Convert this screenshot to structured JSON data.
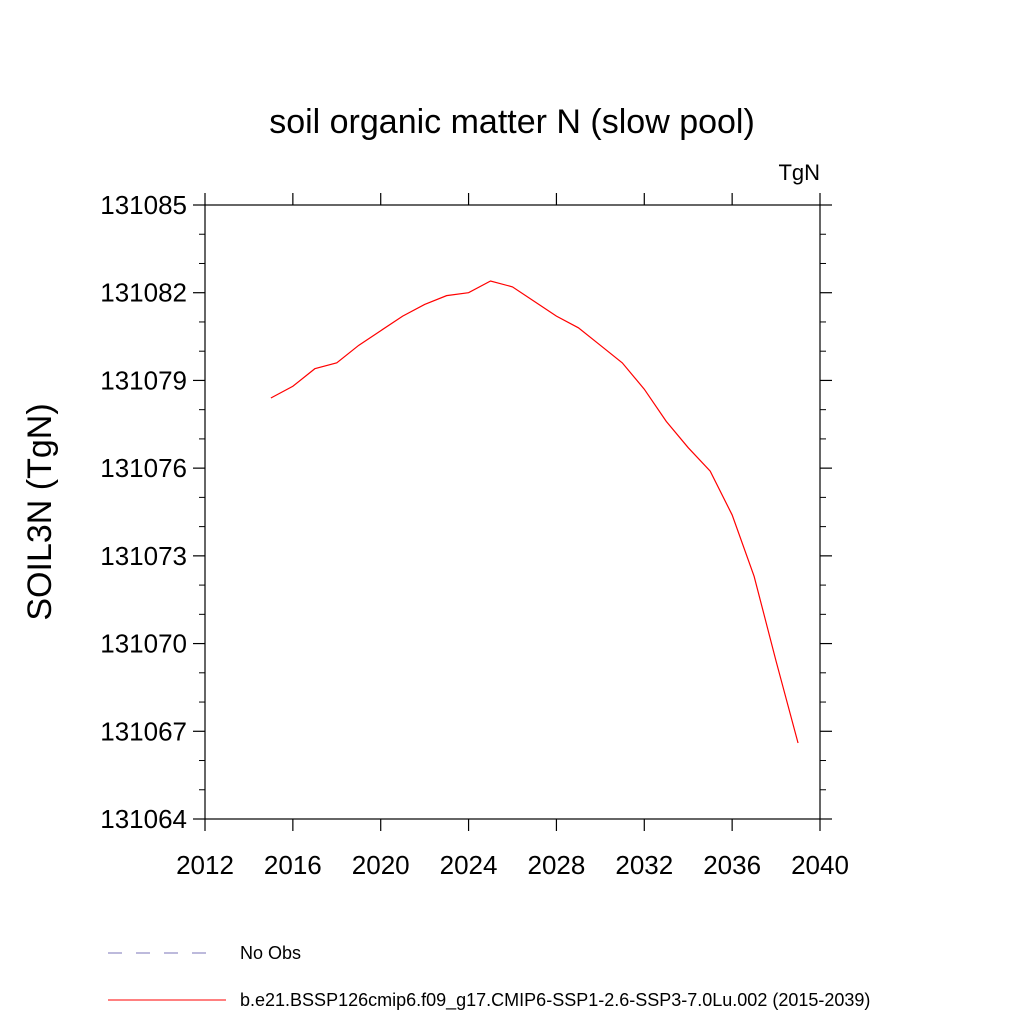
{
  "chart_data": {
    "type": "line",
    "title": "soil organic matter N (slow pool)",
    "units": "TgN",
    "ylabel": "SOIL3N  (TgN)",
    "xlabel": "",
    "xlim": [
      2012,
      2040
    ],
    "ylim": [
      131064,
      131085
    ],
    "xticks": [
      2012,
      2016,
      2020,
      2024,
      2028,
      2032,
      2036,
      2040
    ],
    "yticks": [
      131064,
      131067,
      131070,
      131073,
      131076,
      131079,
      131082,
      131085
    ],
    "grid": false,
    "legend_placement": "bottom",
    "series": [
      {
        "name": "b.e21.BSSP126cmip6.f09_g17.CMIP6-SSP1-2.6-SSP3-7.0Lu.002 (2015-2039)",
        "color": "#ff0000",
        "style": "solid",
        "x": [
          2015,
          2016,
          2017,
          2018,
          2019,
          2020,
          2021,
          2022,
          2023,
          2024,
          2025,
          2026,
          2027,
          2028,
          2029,
          2030,
          2031,
          2032,
          2033,
          2034,
          2035,
          2036,
          2037,
          2038,
          2039
        ],
        "y": [
          131078.4,
          131078.8,
          131079.4,
          131079.6,
          131080.2,
          131080.7,
          131081.2,
          131081.6,
          131081.9,
          131082.0,
          131082.4,
          131082.2,
          131081.7,
          131081.2,
          131080.8,
          131080.2,
          131079.6,
          131078.7,
          131077.6,
          131076.7,
          131075.9,
          131074.4,
          131072.3,
          131069.4,
          131066.6
        ]
      },
      {
        "name": "No Obs",
        "color": "#7b74b8",
        "style": "dashed",
        "x": [],
        "y": []
      }
    ]
  }
}
